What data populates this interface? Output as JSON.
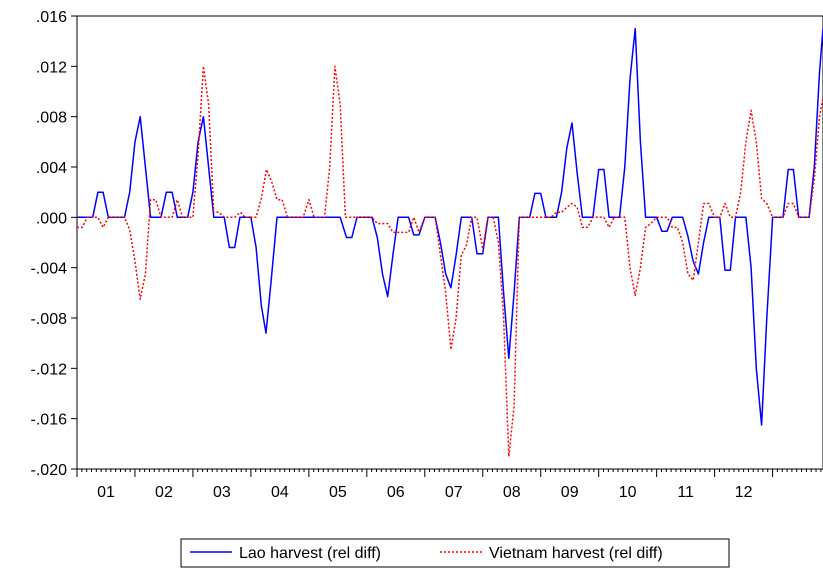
{
  "chart_data": {
    "type": "line",
    "title": "",
    "xlabel": "",
    "ylabel": "",
    "x_tick_labels": [
      "01",
      "02",
      "03",
      "04",
      "05",
      "06",
      "07",
      "08",
      "09",
      "10",
      "11",
      "12"
    ],
    "ylim": [
      -0.02,
      0.016
    ],
    "y_ticks": [
      0.016,
      0.012,
      0.008,
      0.004,
      0.0,
      -0.004,
      -0.008,
      -0.012,
      -0.016,
      -0.02
    ],
    "y_tick_labels": [
      ".016",
      ".012",
      ".008",
      ".004",
      ".000",
      "-.004",
      "-.008",
      "-.012",
      "-.016",
      "-.020"
    ],
    "legend_position": "bottom-center",
    "grid": false,
    "series": [
      {
        "name": "Lao harvest (rel diff)",
        "color": "#0000ff",
        "style": "solid",
        "points": [
          [
            0.0,
            0.0
          ],
          [
            0.27,
            0.0
          ],
          [
            0.36,
            0.002
          ],
          [
            0.45,
            0.002
          ],
          [
            0.54,
            0.0
          ],
          [
            0.82,
            0.0
          ],
          [
            0.91,
            0.002
          ],
          [
            1.0,
            0.006
          ],
          [
            1.09,
            0.008
          ],
          [
            1.18,
            0.004
          ],
          [
            1.27,
            0.0
          ],
          [
            1.45,
            0.0
          ],
          [
            1.54,
            0.002
          ],
          [
            1.64,
            0.002
          ],
          [
            1.73,
            0.0
          ],
          [
            1.91,
            0.0
          ],
          [
            2.0,
            0.002
          ],
          [
            2.09,
            0.006
          ],
          [
            2.18,
            0.008
          ],
          [
            2.27,
            0.004
          ],
          [
            2.36,
            0.0
          ],
          [
            2.54,
            0.0
          ],
          [
            2.63,
            -0.0024
          ],
          [
            2.72,
            -0.0024
          ],
          [
            2.81,
            0.0
          ],
          [
            3.0,
            0.0
          ],
          [
            3.09,
            -0.0024
          ],
          [
            3.18,
            -0.007
          ],
          [
            3.26,
            -0.0092
          ],
          [
            3.35,
            -0.005
          ],
          [
            3.45,
            0.0
          ],
          [
            4.54,
            0.0
          ],
          [
            4.65,
            -0.0016
          ],
          [
            4.74,
            -0.0016
          ],
          [
            4.83,
            0.0
          ],
          [
            5.09,
            0.0
          ],
          [
            5.18,
            -0.0016
          ],
          [
            5.27,
            -0.0045
          ],
          [
            5.36,
            -0.0063
          ],
          [
            5.45,
            -0.003
          ],
          [
            5.54,
            0.0
          ],
          [
            5.72,
            0.0
          ],
          [
            5.81,
            -0.0014
          ],
          [
            5.9,
            -0.0014
          ],
          [
            6.0,
            0.0
          ],
          [
            6.18,
            0.0
          ],
          [
            6.27,
            -0.002
          ],
          [
            6.36,
            -0.0045
          ],
          [
            6.45,
            -0.0056
          ],
          [
            6.54,
            -0.003
          ],
          [
            6.63,
            0.0
          ],
          [
            6.81,
            0.0
          ],
          [
            6.9,
            -0.0029
          ],
          [
            7.0,
            -0.0029
          ],
          [
            7.09,
            0.0
          ],
          [
            7.27,
            0.0
          ],
          [
            7.36,
            -0.006
          ],
          [
            7.45,
            -0.0112
          ],
          [
            7.54,
            -0.006
          ],
          [
            7.63,
            0.0
          ],
          [
            7.81,
            0.0
          ],
          [
            7.9,
            0.0019
          ],
          [
            8.0,
            0.0019
          ],
          [
            8.09,
            0.0
          ],
          [
            8.27,
            0.0
          ],
          [
            8.36,
            0.002
          ],
          [
            8.45,
            0.0055
          ],
          [
            8.54,
            0.0075
          ],
          [
            8.63,
            0.0035
          ],
          [
            8.72,
            0.0
          ],
          [
            8.9,
            0.0
          ],
          [
            9.0,
            0.0038
          ],
          [
            9.09,
            0.0038
          ],
          [
            9.18,
            0.0
          ],
          [
            9.36,
            0.0
          ],
          [
            9.45,
            0.004
          ],
          [
            9.54,
            0.011
          ],
          [
            9.63,
            0.015
          ],
          [
            9.72,
            0.006
          ],
          [
            9.81,
            0.0
          ],
          [
            10.0,
            0.0
          ],
          [
            10.09,
            -0.0011
          ],
          [
            10.18,
            -0.0011
          ],
          [
            10.27,
            0.0
          ],
          [
            10.45,
            0.0
          ],
          [
            10.54,
            -0.0015
          ],
          [
            10.63,
            -0.0035
          ],
          [
            10.72,
            -0.0045
          ],
          [
            10.81,
            -0.002
          ],
          [
            10.9,
            0.0
          ],
          [
            11.09,
            0.0
          ],
          [
            11.18,
            -0.0042
          ],
          [
            11.27,
            -0.0042
          ],
          [
            11.36,
            0.0
          ],
          [
            11.54,
            0.0
          ],
          [
            11.63,
            -0.004
          ],
          [
            11.72,
            -0.012
          ],
          [
            11.81,
            -0.0165
          ],
          [
            11.9,
            -0.008
          ],
          [
            12.0,
            0.0
          ],
          [
            12.18,
            0.0
          ],
          [
            12.27,
            0.0038
          ],
          [
            12.36,
            0.0038
          ],
          [
            12.45,
            0.0
          ],
          [
            12.63,
            0.0
          ],
          [
            12.72,
            0.004
          ],
          [
            12.81,
            0.0115
          ],
          [
            12.87,
            0.015
          ]
        ]
      },
      {
        "name": "Vietnam harvest (rel diff)",
        "color": "#ff0000",
        "style": "dotted",
        "points": [
          [
            0.0,
            -0.0008
          ],
          [
            0.09,
            -0.0008
          ],
          [
            0.18,
            0.0
          ],
          [
            0.36,
            0.0
          ],
          [
            0.45,
            -0.0008
          ],
          [
            0.54,
            0.0
          ],
          [
            0.82,
            0.0
          ],
          [
            0.91,
            -0.001
          ],
          [
            1.0,
            -0.0035
          ],
          [
            1.09,
            -0.0065
          ],
          [
            1.18,
            -0.0045
          ],
          [
            1.27,
            0.0014
          ],
          [
            1.36,
            0.0014
          ],
          [
            1.45,
            0.0
          ],
          [
            1.64,
            0.0
          ],
          [
            1.73,
            0.0014
          ],
          [
            1.82,
            0.0
          ],
          [
            2.0,
            0.0
          ],
          [
            2.09,
            0.005
          ],
          [
            2.18,
            0.012
          ],
          [
            2.27,
            0.009
          ],
          [
            2.36,
            0.0004
          ],
          [
            2.45,
            0.0004
          ],
          [
            2.54,
            0.0
          ],
          [
            2.72,
            0.0
          ],
          [
            2.82,
            0.0004
          ],
          [
            2.9,
            0.0
          ],
          [
            3.09,
            0.0
          ],
          [
            3.18,
            0.0015
          ],
          [
            3.27,
            0.0038
          ],
          [
            3.36,
            0.0028
          ],
          [
            3.45,
            0.0014
          ],
          [
            3.54,
            0.0014
          ],
          [
            3.63,
            0.0
          ],
          [
            3.9,
            0.0
          ],
          [
            4.0,
            0.0014
          ],
          [
            4.09,
            0.0
          ],
          [
            4.27,
            0.0
          ],
          [
            4.36,
            0.004
          ],
          [
            4.45,
            0.012
          ],
          [
            4.54,
            0.009
          ],
          [
            4.63,
            0.0
          ],
          [
            5.09,
            0.0
          ],
          [
            5.18,
            -0.0005
          ],
          [
            5.27,
            -0.0005
          ],
          [
            5.36,
            -0.0005
          ],
          [
            5.45,
            -0.0012
          ],
          [
            5.54,
            -0.0012
          ],
          [
            5.63,
            -0.0012
          ],
          [
            5.72,
            -0.0012
          ],
          [
            5.81,
            0.0
          ],
          [
            5.9,
            -0.0012
          ],
          [
            6.0,
            0.0
          ],
          [
            6.18,
            0.0
          ],
          [
            6.27,
            -0.003
          ],
          [
            6.36,
            -0.006
          ],
          [
            6.45,
            -0.0105
          ],
          [
            6.54,
            -0.008
          ],
          [
            6.63,
            -0.003
          ],
          [
            6.72,
            -0.0022
          ],
          [
            6.81,
            0.0
          ],
          [
            6.9,
            0.0
          ],
          [
            7.0,
            -0.0025
          ],
          [
            7.09,
            0.0
          ],
          [
            7.18,
            0.0
          ],
          [
            7.27,
            -0.002
          ],
          [
            7.36,
            -0.008
          ],
          [
            7.45,
            -0.019
          ],
          [
            7.54,
            -0.015
          ],
          [
            7.63,
            0.0
          ],
          [
            8.18,
            0.0
          ],
          [
            8.27,
            0.0004
          ],
          [
            8.36,
            0.0004
          ],
          [
            8.45,
            0.0008
          ],
          [
            8.54,
            0.0011
          ],
          [
            8.63,
            0.0008
          ],
          [
            8.72,
            -0.0008
          ],
          [
            8.81,
            -0.0008
          ],
          [
            8.9,
            0.0
          ],
          [
            9.09,
            0.0
          ],
          [
            9.18,
            -0.0008
          ],
          [
            9.27,
            0.0
          ],
          [
            9.45,
            0.0
          ],
          [
            9.54,
            -0.004
          ],
          [
            9.63,
            -0.0062
          ],
          [
            9.72,
            -0.004
          ],
          [
            9.81,
            -0.0008
          ],
          [
            9.9,
            -0.0005
          ],
          [
            10.0,
            0.0
          ],
          [
            10.18,
            0.0
          ],
          [
            10.27,
            -0.0008
          ],
          [
            10.36,
            -0.0008
          ],
          [
            10.45,
            -0.002
          ],
          [
            10.54,
            -0.0045
          ],
          [
            10.63,
            -0.005
          ],
          [
            10.72,
            -0.002
          ],
          [
            10.81,
            0.0011
          ],
          [
            10.9,
            0.0011
          ],
          [
            11.0,
            0.0
          ],
          [
            11.09,
            0.0
          ],
          [
            11.18,
            0.0011
          ],
          [
            11.27,
            0.0
          ],
          [
            11.36,
            0.0
          ],
          [
            11.45,
            0.002
          ],
          [
            11.54,
            0.006
          ],
          [
            11.63,
            0.0085
          ],
          [
            11.72,
            0.006
          ],
          [
            11.81,
            0.0015
          ],
          [
            11.9,
            0.0011
          ],
          [
            12.0,
            0.0
          ],
          [
            12.18,
            0.0
          ],
          [
            12.27,
            0.0011
          ],
          [
            12.36,
            0.0011
          ],
          [
            12.45,
            0.0
          ],
          [
            12.63,
            0.0
          ],
          [
            12.72,
            0.003
          ],
          [
            12.81,
            0.008
          ],
          [
            12.87,
            0.0095
          ]
        ]
      }
    ]
  }
}
